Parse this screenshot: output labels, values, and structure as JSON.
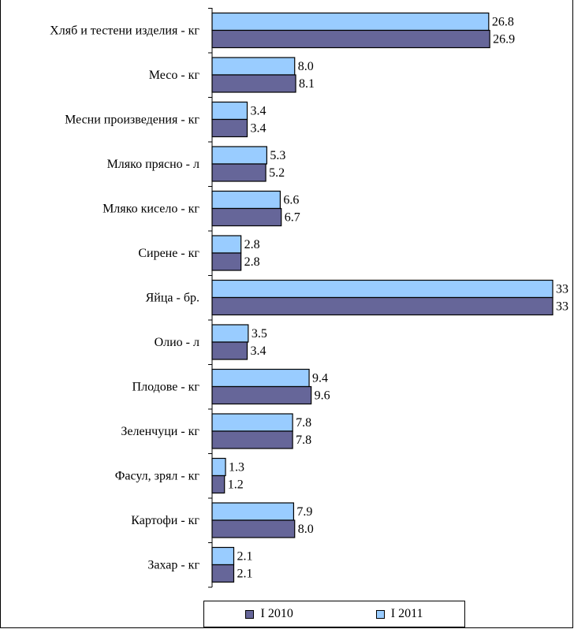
{
  "chart_data": {
    "type": "bar",
    "orientation": "horizontal",
    "categories": [
      "Хляб и тестени изделия - кг",
      "Месо - кг",
      "Месни произведения  - кг",
      "Мляко прясно - л",
      "Мляко кисело - кг",
      "Сирене - кг",
      "Яйца - бр.",
      "Олио - л",
      "Плодове - кг",
      "Зеленчуци  - кг",
      "Фасул, зрял - кг",
      "Картофи - кг",
      "Захар - кг"
    ],
    "series": [
      {
        "name": "I  2011",
        "color": "#99ccff",
        "values": [
          26.8,
          8.0,
          3.4,
          5.3,
          6.6,
          2.8,
          33,
          3.5,
          9.4,
          7.8,
          1.3,
          7.9,
          2.1
        ],
        "labels": [
          "26.8",
          "8.0",
          "3.4",
          "5.3",
          "6.6",
          "2.8",
          "33",
          "3.5",
          "9.4",
          "7.8",
          "1.3",
          "7.9",
          "2.1"
        ]
      },
      {
        "name": "I 2010",
        "color": "#666699",
        "values": [
          26.9,
          8.1,
          3.4,
          5.2,
          6.7,
          2.8,
          33,
          3.4,
          9.6,
          7.8,
          1.2,
          8.0,
          2.1
        ],
        "labels": [
          "26.9",
          "8.1",
          "3.4",
          "5.2",
          "6.7",
          "2.8",
          "33",
          "3.4",
          "9.6",
          "7.8",
          "1.2",
          "8.0",
          "2.1"
        ]
      }
    ],
    "xlim": [
      0,
      33
    ],
    "legend": {
      "position": "bottom",
      "order": [
        "I 2010",
        "I  2011"
      ]
    }
  }
}
